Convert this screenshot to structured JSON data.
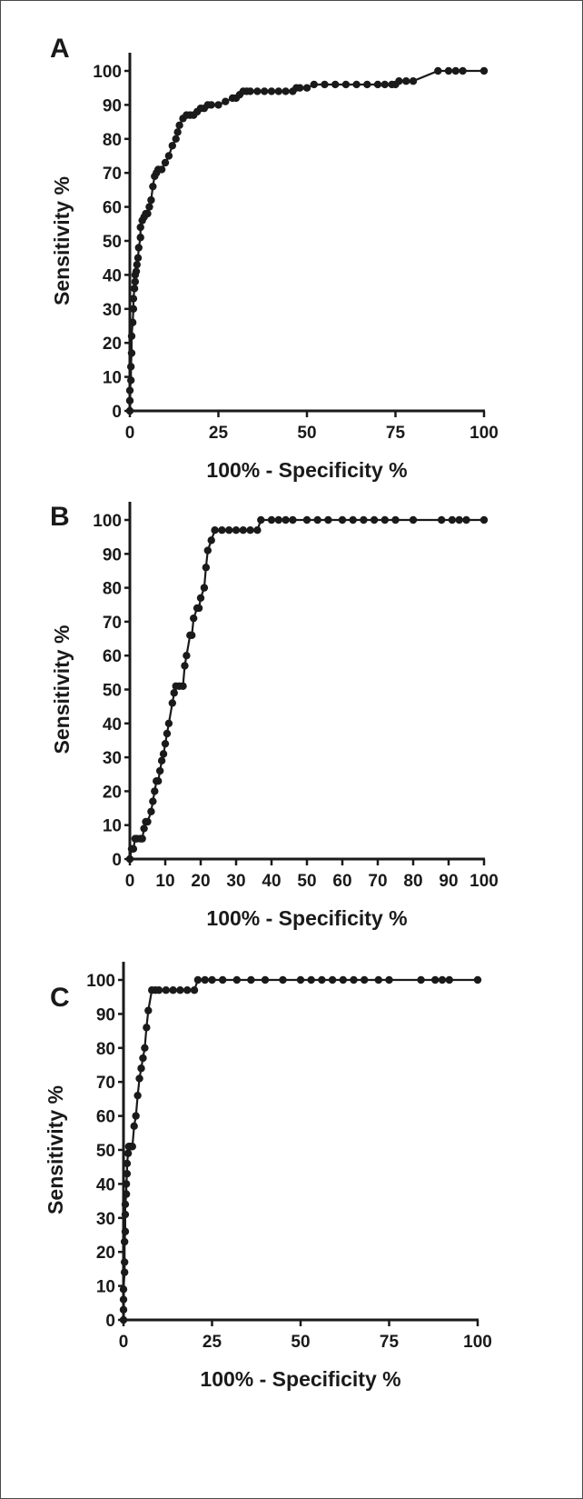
{
  "chart_data": [
    {
      "panel": "A",
      "type": "line",
      "xlabel": "100% - Specificity %",
      "ylabel": "Sensitivity %",
      "xlim": [
        0,
        100
      ],
      "ylim": [
        0,
        100
      ],
      "x_ticks": [
        0,
        25,
        50,
        75,
        100
      ],
      "y_ticks": [
        0,
        10,
        20,
        30,
        40,
        50,
        60,
        70,
        80,
        90,
        100
      ],
      "grid": false,
      "markers": "filled-circle",
      "series": [
        {
          "x": [
            0,
            0,
            0,
            0.3,
            0.3,
            0.5,
            0.5,
            0.8,
            1,
            1,
            1.3,
            1.5,
            1.5,
            1.8,
            2,
            2.3,
            2.5,
            3,
            3,
            3.5,
            4,
            4.5,
            5,
            5.5,
            6,
            6.5,
            7,
            7.5,
            8,
            9,
            10,
            11,
            12,
            13,
            13.5,
            14,
            15,
            16,
            17,
            18,
            19,
            20,
            21,
            22,
            23,
            25,
            27,
            29,
            30,
            31,
            32,
            33,
            34,
            36,
            38,
            40,
            42,
            44,
            46,
            47,
            48,
            50,
            52,
            55,
            58,
            61,
            64,
            67,
            70,
            72,
            74,
            75,
            76,
            78,
            80,
            87,
            90,
            92,
            94,
            100
          ],
          "y": [
            0,
            3,
            6,
            9,
            13,
            17,
            22,
            26,
            30,
            33,
            36,
            38,
            40,
            41,
            43,
            45,
            48,
            51,
            54,
            56,
            57,
            58,
            58,
            60,
            62,
            66,
            69,
            70,
            71,
            71,
            73,
            75,
            78,
            80,
            82,
            84,
            86,
            87,
            87,
            87,
            88,
            89,
            89,
            90,
            90,
            90,
            91,
            92,
            92,
            93,
            94,
            94,
            94,
            94,
            94,
            94,
            94,
            94,
            94,
            95,
            95,
            95,
            96,
            96,
            96,
            96,
            96,
            96,
            96,
            96,
            96,
            96,
            97,
            97,
            97,
            100,
            100,
            100,
            100,
            100
          ]
        }
      ]
    },
    {
      "panel": "B",
      "type": "line",
      "xlabel": "100% - Specificity %",
      "ylabel": "Sensitivity %",
      "xlim": [
        0,
        100
      ],
      "ylim": [
        0,
        100
      ],
      "x_ticks": [
        0,
        10,
        20,
        30,
        40,
        50,
        60,
        70,
        80,
        90,
        100
      ],
      "y_ticks": [
        0,
        10,
        20,
        30,
        40,
        50,
        60,
        70,
        80,
        90,
        100
      ],
      "grid": false,
      "markers": "filled-circle",
      "series": [
        {
          "x": [
            0,
            0.5,
            1,
            1.5,
            2,
            3,
            3.5,
            4,
            4.5,
            5,
            6,
            6.5,
            7,
            7.5,
            8,
            8.5,
            9,
            9.5,
            10,
            10.5,
            11,
            12,
            12.5,
            13,
            14,
            15,
            15.5,
            16,
            17,
            17.5,
            18,
            19,
            19.5,
            20,
            21,
            21.5,
            22,
            23,
            24,
            26,
            28,
            30,
            32,
            34,
            36,
            37,
            40,
            42,
            44,
            46,
            50,
            53,
            56,
            60,
            63,
            66,
            69,
            72,
            75,
            80,
            88,
            91,
            93,
            95,
            100
          ],
          "y": [
            0,
            3,
            3,
            6,
            6,
            6,
            6,
            9,
            11,
            11,
            14,
            17,
            20,
            23,
            23,
            26,
            29,
            31,
            34,
            37,
            40,
            46,
            49,
            51,
            51,
            51,
            57,
            60,
            66,
            66,
            71,
            74,
            74,
            77,
            80,
            86,
            91,
            94,
            97,
            97,
            97,
            97,
            97,
            97,
            97,
            100,
            100,
            100,
            100,
            100,
            100,
            100,
            100,
            100,
            100,
            100,
            100,
            100,
            100,
            100,
            100,
            100,
            100,
            100,
            100
          ]
        }
      ]
    },
    {
      "panel": "C",
      "type": "line",
      "xlabel": "100% - Specificity %",
      "ylabel": "Sensitivity %",
      "xlim": [
        0,
        100
      ],
      "ylim": [
        0,
        100
      ],
      "x_ticks": [
        0,
        25,
        50,
        75,
        100
      ],
      "y_ticks": [
        0,
        10,
        20,
        30,
        40,
        50,
        60,
        70,
        80,
        90,
        100
      ],
      "grid": false,
      "markers": "filled-circle",
      "series": [
        {
          "x": [
            0,
            0,
            0,
            0,
            0.3,
            0.3,
            0.3,
            0.5,
            0.5,
            0.5,
            0.8,
            0.8,
            1,
            1,
            1.3,
            1.5,
            2,
            2.5,
            3,
            3.5,
            4,
            4.5,
            5,
            5.5,
            6,
            6.5,
            7,
            8,
            9,
            10,
            12,
            14,
            16,
            18,
            20,
            21,
            23,
            25,
            28,
            32,
            36,
            40,
            45,
            50,
            53,
            56,
            59,
            62,
            65,
            68,
            72,
            75,
            84,
            88,
            90,
            92,
            100
          ],
          "y": [
            0,
            3,
            6,
            9,
            14,
            17,
            23,
            26,
            31,
            34,
            37,
            40,
            43,
            46,
            49,
            51,
            51,
            51,
            57,
            60,
            66,
            71,
            74,
            77,
            80,
            86,
            91,
            97,
            97,
            97,
            97,
            97,
            97,
            97,
            97,
            100,
            100,
            100,
            100,
            100,
            100,
            100,
            100,
            100,
            100,
            100,
            100,
            100,
            100,
            100,
            100,
            100,
            100,
            100,
            100,
            100,
            100
          ]
        }
      ]
    }
  ]
}
